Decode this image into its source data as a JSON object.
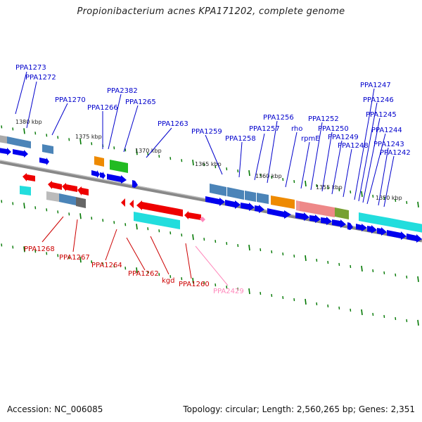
{
  "title": "Propionibacterium acnes KPA171202, complete genome",
  "footer": {
    "accession": "Accession: NC_006085",
    "summary": "Topology: circular; Length: 2,560,265 bp; Genes: 2,351"
  },
  "colors": {
    "forward_label": "#0000cc",
    "reverse_label": "#cc0000",
    "pseudo_label": "#ff88bb",
    "tick": "#007700",
    "backbone": "#888888"
  },
  "scale_labels": [
    "1380 kbp",
    "1375 kbp",
    "1370 kbp",
    "1365 kbp",
    "1360 kbp",
    "1355 kbp",
    "1350 kbp"
  ],
  "forward_genes": [
    "PPA1273",
    "PPA1272",
    "PPA1270",
    "PPA2382",
    "PPA1266",
    "PPA1265",
    "PPA1263",
    "PPA1259",
    "PPA1258",
    "PPA1257",
    "PPA1256",
    "rho",
    "rpmE",
    "PPA1252",
    "PPA1250",
    "PPA1249",
    "PPA1248",
    "PPA1247",
    "PPA1246",
    "PPA1245",
    "PPA1244",
    "PPA1243",
    "PPA1242"
  ],
  "reverse_genes": [
    "PPA1268",
    "PPA1267",
    "PPA1264",
    "PPA1262",
    "kgd",
    "PPA1260",
    "PPA2429"
  ]
}
